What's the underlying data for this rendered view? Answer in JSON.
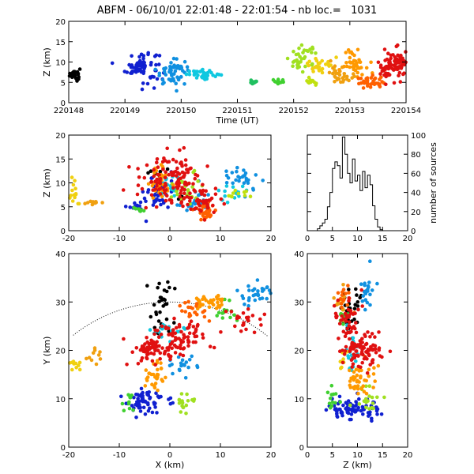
{
  "title": "ABFM - 06/10/01 22:01:48 - 22:01:54 - nb loc.=   1031",
  "chart_data": [
    {
      "id": "time_height",
      "type": "scatter",
      "xlabel": "Time (UT)",
      "ylabel": "Z (km)",
      "xlim": [
        0,
        6
      ],
      "ylim": [
        0,
        20
      ],
      "x_tick_values": [
        0,
        1,
        2,
        3,
        4,
        5,
        6
      ],
      "x_tick_labels": [
        "220148",
        "220149",
        "220150",
        "220151",
        "220152",
        "220153",
        "220154"
      ],
      "y_ticks": [
        0,
        5,
        10,
        15,
        20
      ],
      "clusters": [
        {
          "x": 0.1,
          "y": 7,
          "sx": 0.05,
          "sy": 0.8,
          "n": 25,
          "color": "#000000"
        },
        {
          "x": 1.3,
          "y": 9,
          "sx": 0.15,
          "sy": 2.0,
          "n": 70,
          "color": "#1020d0"
        },
        {
          "x": 1.85,
          "y": 7.5,
          "sx": 0.15,
          "sy": 1.5,
          "n": 55,
          "color": "#1090e0"
        },
        {
          "x": 2.4,
          "y": 7,
          "sx": 0.15,
          "sy": 0.5,
          "n": 35,
          "color": "#10c8e0"
        },
        {
          "x": 3.3,
          "y": 5,
          "sx": 0.05,
          "sy": 0.3,
          "n": 10,
          "color": "#20c060"
        },
        {
          "x": 3.75,
          "y": 5,
          "sx": 0.06,
          "sy": 0.4,
          "n": 10,
          "color": "#40d030"
        },
        {
          "x": 4.15,
          "y": 11,
          "sx": 0.15,
          "sy": 1.5,
          "n": 35,
          "color": "#a0e020"
        },
        {
          "x": 4.3,
          "y": 5,
          "sx": 0.05,
          "sy": 0.4,
          "n": 10,
          "color": "#c0e010"
        },
        {
          "x": 4.5,
          "y": 9,
          "sx": 0.15,
          "sy": 1.0,
          "n": 30,
          "color": "#f0d010"
        },
        {
          "x": 4.85,
          "y": 7,
          "sx": 0.1,
          "sy": 1.2,
          "n": 30,
          "color": "#f0a010"
        },
        {
          "x": 5.1,
          "y": 10,
          "sx": 0.1,
          "sy": 1.5,
          "n": 40,
          "color": "#ff9900"
        },
        {
          "x": 5.35,
          "y": 5,
          "sx": 0.12,
          "sy": 0.8,
          "n": 35,
          "color": "#ff6000"
        },
        {
          "x": 5.8,
          "y": 9,
          "sx": 0.15,
          "sy": 2.0,
          "n": 90,
          "color": "#e01010"
        }
      ]
    },
    {
      "id": "x_height",
      "type": "scatter",
      "ylabel": "Z (km)",
      "xlim": [
        -20,
        20
      ],
      "ylim": [
        0,
        20
      ],
      "x_ticks": [
        -20,
        -10,
        0,
        10,
        20
      ],
      "y_ticks": [
        0,
        5,
        10,
        15,
        20
      ],
      "clusters": [
        {
          "x": -3,
          "y": 12,
          "sx": 1.0,
          "sy": 0.8,
          "n": 8,
          "color": "#000000"
        },
        {
          "x": 2,
          "y": 7,
          "sx": 0.3,
          "sy": 0.3,
          "n": 4,
          "color": "#000000"
        },
        {
          "x": -2,
          "y": 8,
          "sx": 1.5,
          "sy": 2.0,
          "n": 45,
          "color": "#1020d0"
        },
        {
          "x": -7,
          "y": 5,
          "sx": 0.8,
          "sy": 0.5,
          "n": 10,
          "color": "#1020d0"
        },
        {
          "x": 5,
          "y": 6,
          "sx": 2.0,
          "sy": 1.0,
          "n": 20,
          "color": "#1090e0"
        },
        {
          "x": 14,
          "y": 11,
          "sx": 2.5,
          "sy": 1.5,
          "n": 30,
          "color": "#1090e0"
        },
        {
          "x": 12,
          "y": 8,
          "sx": 2.0,
          "sy": 1.0,
          "n": 15,
          "color": "#10c8e0"
        },
        {
          "x": 0,
          "y": 9,
          "sx": 1.0,
          "sy": 1.5,
          "n": 20,
          "color": "#10c8e0"
        },
        {
          "x": -6,
          "y": 4.5,
          "sx": 0.5,
          "sy": 0.4,
          "n": 8,
          "color": "#40d030"
        },
        {
          "x": 3,
          "y": 8.5,
          "sx": 1.5,
          "sy": 1.5,
          "n": 25,
          "color": "#a0e020"
        },
        {
          "x": 13,
          "y": 8,
          "sx": 2.0,
          "sy": 0.6,
          "n": 10,
          "color": "#c0e010"
        },
        {
          "x": -19,
          "y": 8,
          "sx": 0.7,
          "sy": 1.5,
          "n": 15,
          "color": "#f0d010"
        },
        {
          "x": -15,
          "y": 6,
          "sx": 0.8,
          "sy": 0.4,
          "n": 10,
          "color": "#f0a010"
        },
        {
          "x": -2,
          "y": 10,
          "sx": 1.0,
          "sy": 2.0,
          "n": 40,
          "color": "#ff9900"
        },
        {
          "x": 7,
          "y": 4,
          "sx": 1.5,
          "sy": 1.0,
          "n": 30,
          "color": "#ff6000"
        },
        {
          "x": 0,
          "y": 11,
          "sx": 3.0,
          "sy": 2.5,
          "n": 110,
          "color": "#e01010"
        },
        {
          "x": 6,
          "y": 7,
          "sx": 2.0,
          "sy": 1.5,
          "n": 50,
          "color": "#e01010"
        }
      ]
    },
    {
      "id": "height_histogram",
      "type": "histogram",
      "right_ylabel": "number of sources",
      "xlim": [
        0,
        20
      ],
      "ylim": [
        0,
        100
      ],
      "x_ticks": [
        0,
        5,
        10,
        15,
        20
      ],
      "y_ticks": [
        0,
        20,
        40,
        60,
        80,
        100
      ],
      "bin_width": 0.5,
      "bin_start": 2,
      "counts": [
        2,
        5,
        8,
        12,
        25,
        40,
        65,
        72,
        68,
        55,
        98,
        80,
        60,
        50,
        75,
        52,
        58,
        42,
        62,
        45,
        58,
        48,
        26,
        12,
        4,
        1
      ]
    },
    {
      "id": "plan_view",
      "type": "scatter",
      "xlabel": "X (km)",
      "ylabel": "Y (km)",
      "xlim": [
        -20,
        20
      ],
      "ylim": [
        0,
        40
      ],
      "x_ticks": [
        -20,
        -10,
        0,
        10,
        20
      ],
      "y_ticks": [
        0,
        10,
        20,
        30,
        40
      ],
      "range_circle": {
        "cx": 0,
        "cy": 0,
        "r": 30
      },
      "clusters": [
        {
          "x": -2,
          "y": 29,
          "sx": 1.5,
          "sy": 3.0,
          "n": 30,
          "color": "#000000"
        },
        {
          "x": -5,
          "y": 9,
          "sx": 2.0,
          "sy": 1.5,
          "n": 60,
          "color": "#1020d0"
        },
        {
          "x": 17,
          "y": 32,
          "sx": 2.0,
          "sy": 1.5,
          "n": 30,
          "color": "#1090e0"
        },
        {
          "x": 3,
          "y": 17,
          "sx": 1.5,
          "sy": 0.8,
          "n": 20,
          "color": "#1090e0"
        },
        {
          "x": -1,
          "y": 24,
          "sx": 1.5,
          "sy": 1.0,
          "n": 20,
          "color": "#10c8e0"
        },
        {
          "x": -8,
          "y": 9,
          "sx": 0.7,
          "sy": 1.0,
          "n": 10,
          "color": "#40d030"
        },
        {
          "x": 11,
          "y": 28,
          "sx": 1.5,
          "sy": 1.0,
          "n": 15,
          "color": "#40d030"
        },
        {
          "x": 3,
          "y": 9,
          "sx": 0.8,
          "sy": 1.2,
          "n": 20,
          "color": "#a0e020"
        },
        {
          "x": -19,
          "y": 17,
          "sx": 0.5,
          "sy": 0.8,
          "n": 10,
          "color": "#f0d010"
        },
        {
          "x": -15,
          "y": 19,
          "sx": 0.8,
          "sy": 0.8,
          "n": 10,
          "color": "#f0a010"
        },
        {
          "x": 8,
          "y": 30,
          "sx": 2.0,
          "sy": 1.0,
          "n": 35,
          "color": "#ff9900"
        },
        {
          "x": -3,
          "y": 15,
          "sx": 1.0,
          "sy": 1.5,
          "n": 30,
          "color": "#ff9900"
        },
        {
          "x": 5,
          "y": 28,
          "sx": 1.5,
          "sy": 1.0,
          "n": 20,
          "color": "#ff6000"
        },
        {
          "x": -3,
          "y": 20,
          "sx": 2.5,
          "sy": 1.5,
          "n": 80,
          "color": "#e01010"
        },
        {
          "x": 3,
          "y": 23,
          "sx": 2.5,
          "sy": 1.5,
          "n": 60,
          "color": "#e01010"
        },
        {
          "x": 14,
          "y": 26,
          "sx": 2.0,
          "sy": 1.2,
          "n": 25,
          "color": "#e01010"
        }
      ]
    },
    {
      "id": "height_y",
      "type": "scatter",
      "xlabel": "Z (km)",
      "xlim": [
        0,
        20
      ],
      "ylim": [
        0,
        40
      ],
      "x_ticks": [
        0,
        5,
        10,
        15,
        20
      ],
      "y_ticks": [
        0,
        10,
        20,
        30,
        40
      ],
      "clusters": [
        {
          "x": 9,
          "y": 29,
          "sx": 1.0,
          "sy": 3.5,
          "n": 30,
          "color": "#000000"
        },
        {
          "x": 8,
          "y": 8,
          "sx": 2.0,
          "sy": 1.2,
          "n": 60,
          "color": "#1020d0"
        },
        {
          "x": 12,
          "y": 8,
          "sx": 1.5,
          "sy": 1.0,
          "n": 20,
          "color": "#1020d0"
        },
        {
          "x": 12,
          "y": 32,
          "sx": 1.0,
          "sy": 2.0,
          "n": 25,
          "color": "#1090e0"
        },
        {
          "x": 9,
          "y": 19,
          "sx": 0.8,
          "sy": 2.5,
          "n": 20,
          "color": "#10c8e0"
        },
        {
          "x": 5,
          "y": 10,
          "sx": 0.6,
          "sy": 1.5,
          "n": 12,
          "color": "#40d030"
        },
        {
          "x": 7,
          "y": 27,
          "sx": 0.6,
          "sy": 1.0,
          "n": 10,
          "color": "#40d030"
        },
        {
          "x": 12,
          "y": 10,
          "sx": 1.2,
          "sy": 1.5,
          "n": 20,
          "color": "#a0e020"
        },
        {
          "x": 7,
          "y": 18,
          "sx": 0.5,
          "sy": 1.5,
          "n": 10,
          "color": "#f0d010"
        },
        {
          "x": 7,
          "y": 30,
          "sx": 1.0,
          "sy": 2.0,
          "n": 15,
          "color": "#f0a010"
        },
        {
          "x": 10,
          "y": 14,
          "sx": 1.5,
          "sy": 1.5,
          "n": 40,
          "color": "#ff9900"
        },
        {
          "x": 7,
          "y": 31,
          "sx": 0.8,
          "sy": 1.5,
          "n": 15,
          "color": "#ff6000"
        },
        {
          "x": 11,
          "y": 20,
          "sx": 2.0,
          "sy": 2.0,
          "n": 90,
          "color": "#e01010"
        },
        {
          "x": 8,
          "y": 27,
          "sx": 1.5,
          "sy": 2.5,
          "n": 40,
          "color": "#e01010"
        }
      ]
    }
  ]
}
